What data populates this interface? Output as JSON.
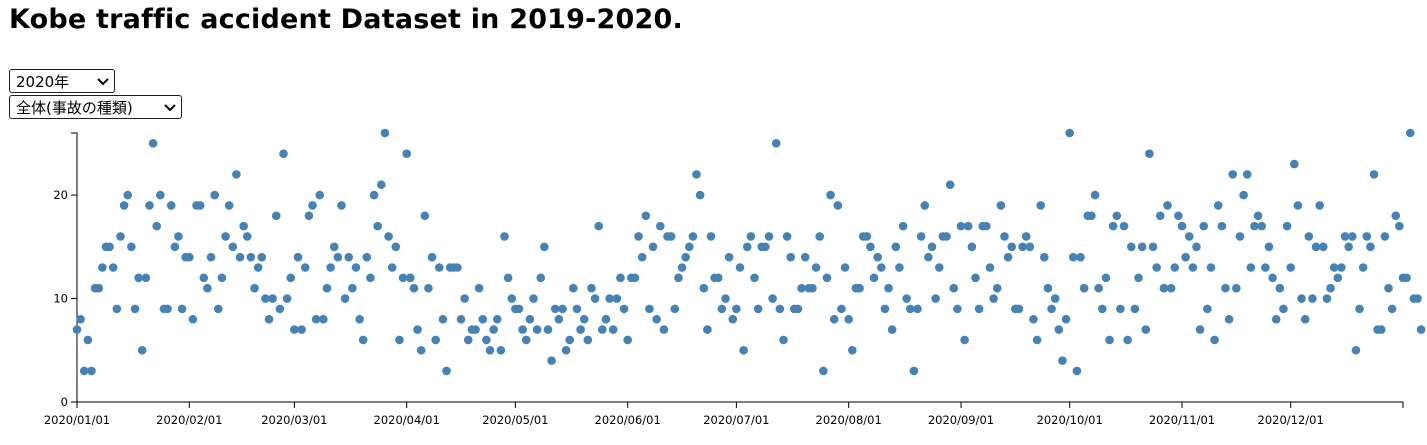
{
  "page": {
    "title": "Kobe traffic accident Dataset in 2019-2020.",
    "year_select": {
      "selected": "2020年",
      "icon": "chevron-down-icon"
    },
    "type_select": {
      "selected": "全体(事故の種類)",
      "icon": "chevron-down-icon"
    }
  },
  "chart_data": {
    "type": "scatter",
    "title": "",
    "xlabel": "",
    "ylabel": "",
    "x_start": "2020-01-01",
    "x_end": "2020-12-31",
    "xlim": [
      "2020-01-01",
      "2021-01-01"
    ],
    "ylim": [
      0,
      26
    ],
    "y_ticks": [
      0,
      10,
      20
    ],
    "x_tick_labels": [
      "2020/01/01",
      "2020/02/01",
      "2020/03/01",
      "2020/04/01",
      "2020/05/01",
      "2020/06/01",
      "2020/07/01",
      "2020/08/01",
      "2020/09/01",
      "2020/10/01",
      "2020/11/01",
      "2020/12/01"
    ],
    "grid": false,
    "point_color": "#4682b4",
    "y": [
      7,
      8,
      3,
      6,
      3,
      11,
      11,
      13,
      15,
      15,
      13,
      9,
      16,
      19,
      20,
      15,
      9,
      12,
      5,
      12,
      19,
      25,
      17,
      20,
      9,
      9,
      19,
      15,
      16,
      9,
      14,
      14,
      8,
      19,
      19,
      12,
      11,
      14,
      20,
      9,
      12,
      16,
      19,
      15,
      22,
      14,
      17,
      16,
      14,
      11,
      13,
      14,
      10,
      8,
      10,
      18,
      9,
      24,
      10,
      12,
      7,
      14,
      7,
      13,
      18,
      19,
      8,
      20,
      8,
      11,
      13,
      15,
      14,
      19,
      10,
      14,
      11,
      13,
      8,
      6,
      14,
      12,
      20,
      17,
      21,
      26,
      16,
      13,
      15,
      6,
      12,
      24,
      12,
      11,
      7,
      5,
      18,
      11,
      14,
      6,
      13,
      8,
      3,
      13,
      13,
      13,
      8,
      10,
      6,
      7,
      7,
      11,
      8,
      6,
      5,
      7,
      8,
      5,
      16,
      12,
      10,
      9,
      9,
      7,
      6,
      8,
      10,
      7,
      12,
      15,
      7,
      4,
      9,
      8,
      9,
      5,
      6,
      11,
      9,
      7,
      8,
      6,
      11,
      10,
      17,
      7,
      8,
      10,
      7,
      10,
      12,
      9,
      6,
      12,
      12,
      16,
      14,
      18,
      9,
      15,
      8,
      17,
      7,
      16,
      16,
      9,
      12,
      13,
      14,
      15,
      16,
      22,
      20,
      11,
      7,
      16,
      12,
      12,
      9,
      10,
      14,
      8,
      9,
      13,
      5,
      15,
      16,
      12,
      9,
      15,
      15,
      16,
      10,
      25,
      9,
      6,
      16,
      14,
      9,
      9,
      11,
      14,
      11,
      11,
      13,
      16,
      3,
      12,
      20,
      8,
      19,
      9,
      13,
      8,
      5,
      11,
      11,
      16,
      16,
      15,
      12,
      14,
      13,
      9,
      11,
      7,
      15,
      13,
      17,
      10,
      9,
      3,
      9,
      16,
      19,
      14,
      15,
      10,
      13,
      16,
      16,
      21,
      11,
      9,
      17,
      6,
      17,
      15,
      12,
      9,
      17,
      17,
      13,
      10,
      11,
      19,
      16,
      14,
      15,
      9,
      9,
      15,
      16,
      15,
      8,
      6,
      19,
      14,
      11,
      9,
      10,
      7,
      4,
      8,
      26,
      14,
      3,
      14,
      11,
      18,
      18,
      20,
      11,
      9,
      12,
      6,
      17,
      18,
      9,
      17,
      6,
      15,
      9,
      12,
      15,
      7,
      24,
      15,
      13,
      18,
      11,
      19,
      11,
      13,
      18,
      17,
      14,
      16,
      13,
      15,
      7,
      17,
      9,
      13,
      6,
      19,
      17,
      11,
      8,
      22,
      11,
      16,
      20,
      22,
      13,
      17,
      18,
      17,
      13,
      15,
      12,
      8,
      11,
      9,
      17,
      13,
      23,
      19,
      10,
      8,
      16,
      10,
      15,
      19,
      15,
      10,
      11,
      13,
      12,
      13,
      16,
      15,
      16,
      5,
      9,
      13,
      16,
      15,
      22,
      7,
      7,
      16,
      11,
      9,
      18,
      17,
      12,
      12,
      26,
      10,
      10,
      7
    ]
  }
}
